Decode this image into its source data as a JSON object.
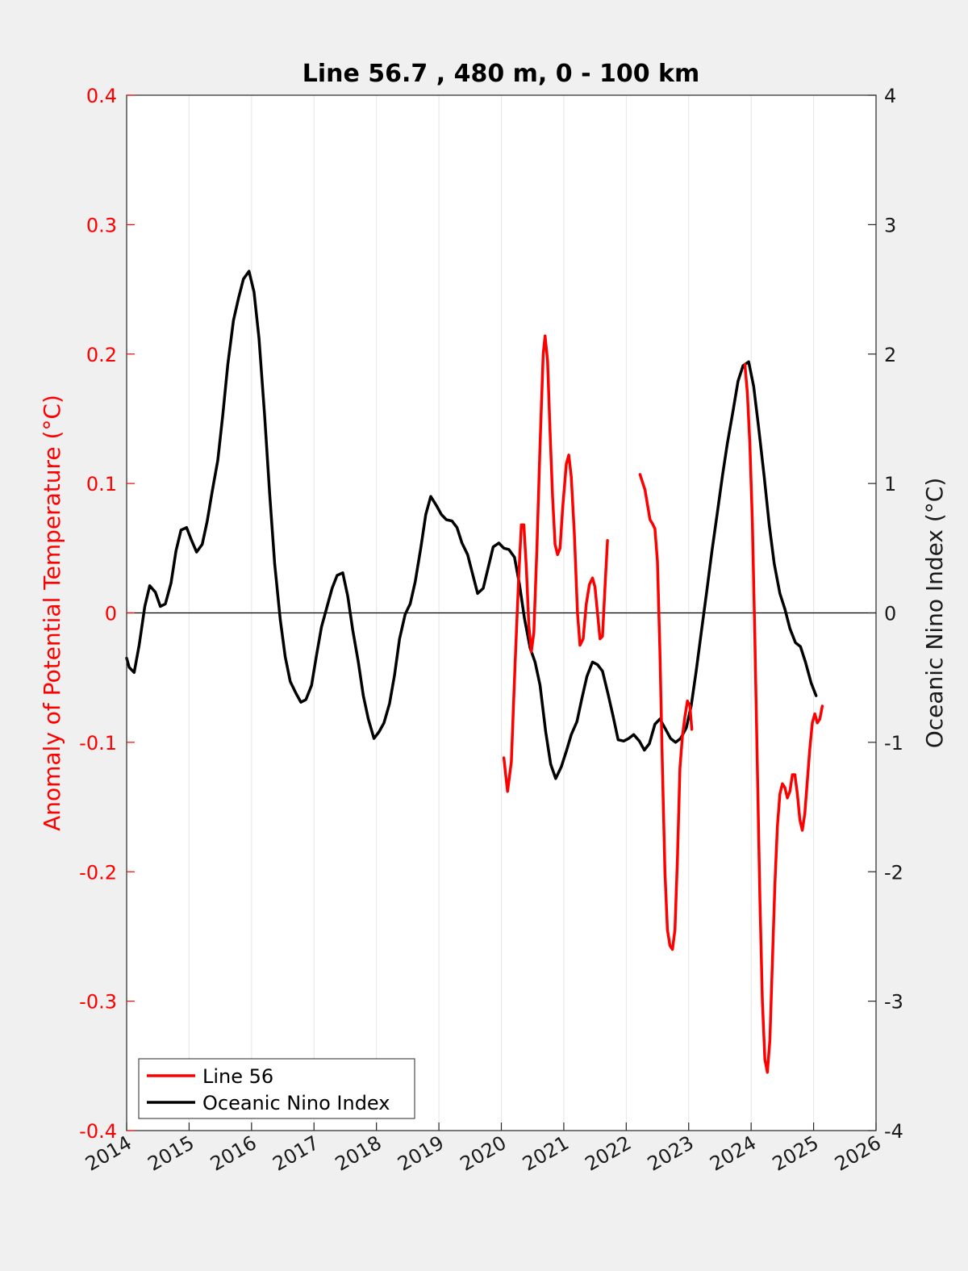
{
  "chart_data": {
    "type": "line",
    "title": "Line 56.7 , 480 m, 0 - 100 km",
    "ylabel_left": "Anomaly of Potential Temperature (°C)",
    "ylabel_right": "Oceanic Nino Index (°C)",
    "xlabel": "",
    "xlim": [
      2014,
      2026
    ],
    "ylim_left": [
      -0.4,
      0.4
    ],
    "ylim_right": [
      -4,
      4
    ],
    "x_ticks": [
      "2014",
      "2015",
      "2016",
      "2017",
      "2018",
      "2019",
      "2020",
      "2021",
      "2022",
      "2023",
      "2024",
      "2025",
      "2026"
    ],
    "y_ticks_left": [
      "0.4",
      "0.3",
      "0.2",
      "0.1",
      "0",
      "-0.1",
      "-0.2",
      "-0.3",
      "-0.4"
    ],
    "y_ticks_right": [
      "4",
      "3",
      "2",
      "1",
      "0",
      "-1",
      "-2",
      "-3",
      "-4"
    ],
    "grid": "vertical",
    "zero_line": true,
    "legend_position": "bottom-left",
    "series": [
      {
        "name": "Line 56",
        "axis": "left",
        "color": "#ff0000",
        "segments": [
          [
            [
              2020.04,
              -0.112
            ],
            [
              2020.1,
              -0.138
            ],
            [
              2020.16,
              -0.115
            ],
            [
              2020.22,
              -0.04
            ],
            [
              2020.28,
              0.03
            ],
            [
              2020.32,
              0.068
            ],
            [
              2020.36,
              0.068
            ],
            [
              2020.4,
              0.035
            ],
            [
              2020.44,
              -0.01
            ],
            [
              2020.48,
              -0.03
            ],
            [
              2020.52,
              -0.015
            ],
            [
              2020.57,
              0.05
            ],
            [
              2020.62,
              0.13
            ],
            [
              2020.67,
              0.2
            ],
            [
              2020.7,
              0.214
            ],
            [
              2020.74,
              0.195
            ],
            [
              2020.78,
              0.14
            ],
            [
              2020.82,
              0.09
            ],
            [
              2020.86,
              0.053
            ],
            [
              2020.9,
              0.045
            ],
            [
              2020.94,
              0.05
            ],
            [
              2020.98,
              0.08
            ],
            [
              2021.04,
              0.115
            ],
            [
              2021.08,
              0.122
            ],
            [
              2021.12,
              0.105
            ],
            [
              2021.17,
              0.06
            ],
            [
              2021.22,
              0.0
            ],
            [
              2021.26,
              -0.025
            ],
            [
              2021.31,
              -0.02
            ],
            [
              2021.36,
              0.007
            ],
            [
              2021.41,
              0.022
            ],
            [
              2021.46,
              0.027
            ],
            [
              2021.5,
              0.02
            ],
            [
              2021.54,
              0.0
            ],
            [
              2021.58,
              -0.02
            ],
            [
              2021.62,
              -0.018
            ],
            [
              2021.66,
              0.02
            ],
            [
              2021.7,
              0.056
            ]
          ],
          [
            [
              2022.22,
              0.107
            ],
            [
              2022.3,
              0.095
            ],
            [
              2022.38,
              0.072
            ],
            [
              2022.42,
              0.069
            ],
            [
              2022.46,
              0.065
            ],
            [
              2022.5,
              0.04
            ],
            [
              2022.54,
              -0.03
            ],
            [
              2022.58,
              -0.12
            ],
            [
              2022.62,
              -0.2
            ],
            [
              2022.66,
              -0.245
            ],
            [
              2022.7,
              -0.257
            ],
            [
              2022.74,
              -0.26
            ],
            [
              2022.78,
              -0.245
            ],
            [
              2022.82,
              -0.19
            ],
            [
              2022.86,
              -0.12
            ],
            [
              2022.9,
              -0.095
            ],
            [
              2022.94,
              -0.08
            ],
            [
              2022.98,
              -0.068
            ],
            [
              2023.02,
              -0.072
            ],
            [
              2023.05,
              -0.09
            ]
          ],
          [
            [
              2023.9,
              0.192
            ],
            [
              2023.94,
              0.17
            ],
            [
              2023.98,
              0.13
            ],
            [
              2024.02,
              0.07
            ],
            [
              2024.06,
              -0.02
            ],
            [
              2024.1,
              -0.12
            ],
            [
              2024.14,
              -0.22
            ],
            [
              2024.18,
              -0.3
            ],
            [
              2024.22,
              -0.345
            ],
            [
              2024.26,
              -0.355
            ],
            [
              2024.3,
              -0.33
            ],
            [
              2024.34,
              -0.27
            ],
            [
              2024.38,
              -0.21
            ],
            [
              2024.42,
              -0.165
            ],
            [
              2024.46,
              -0.14
            ],
            [
              2024.5,
              -0.132
            ],
            [
              2024.54,
              -0.135
            ],
            [
              2024.58,
              -0.143
            ],
            [
              2024.62,
              -0.138
            ],
            [
              2024.66,
              -0.125
            ],
            [
              2024.7,
              -0.125
            ],
            [
              2024.74,
              -0.14
            ],
            [
              2024.78,
              -0.16
            ],
            [
              2024.82,
              -0.168
            ],
            [
              2024.86,
              -0.155
            ],
            [
              2024.9,
              -0.13
            ],
            [
              2024.94,
              -0.105
            ],
            [
              2024.98,
              -0.085
            ],
            [
              2025.02,
              -0.078
            ],
            [
              2025.06,
              -0.085
            ],
            [
              2025.1,
              -0.082
            ],
            [
              2025.14,
              -0.072
            ]
          ]
        ]
      },
      {
        "name": "Oceanic Nino Index",
        "axis": "right",
        "color": "#000000",
        "segments": [
          [
            [
              2014.0,
              -0.35
            ],
            [
              2014.04,
              -0.42
            ],
            [
              2014.12,
              -0.46
            ],
            [
              2014.2,
              -0.25
            ],
            [
              2014.29,
              0.05
            ],
            [
              2014.37,
              0.21
            ],
            [
              2014.46,
              0.16
            ],
            [
              2014.54,
              0.05
            ],
            [
              2014.62,
              0.07
            ],
            [
              2014.71,
              0.23
            ],
            [
              2014.79,
              0.48
            ],
            [
              2014.87,
              0.64
            ],
            [
              2014.96,
              0.66
            ],
            [
              2015.04,
              0.56
            ],
            [
              2015.12,
              0.47
            ],
            [
              2015.21,
              0.53
            ],
            [
              2015.29,
              0.71
            ],
            [
              2015.37,
              0.94
            ],
            [
              2015.46,
              1.18
            ],
            [
              2015.54,
              1.53
            ],
            [
              2015.62,
              1.92
            ],
            [
              2015.71,
              2.26
            ],
            [
              2015.79,
              2.43
            ],
            [
              2015.87,
              2.58
            ],
            [
              2015.96,
              2.64
            ],
            [
              2016.04,
              2.48
            ],
            [
              2016.12,
              2.12
            ],
            [
              2016.21,
              1.52
            ],
            [
              2016.29,
              0.92
            ],
            [
              2016.37,
              0.38
            ],
            [
              2016.46,
              -0.05
            ],
            [
              2016.54,
              -0.34
            ],
            [
              2016.62,
              -0.53
            ],
            [
              2016.71,
              -0.62
            ],
            [
              2016.79,
              -0.69
            ],
            [
              2016.87,
              -0.67
            ],
            [
              2016.96,
              -0.56
            ],
            [
              2017.04,
              -0.33
            ],
            [
              2017.12,
              -0.11
            ],
            [
              2017.21,
              0.05
            ],
            [
              2017.29,
              0.19
            ],
            [
              2017.37,
              0.29
            ],
            [
              2017.46,
              0.31
            ],
            [
              2017.54,
              0.13
            ],
            [
              2017.62,
              -0.13
            ],
            [
              2017.71,
              -0.38
            ],
            [
              2017.79,
              -0.64
            ],
            [
              2017.87,
              -0.82
            ],
            [
              2017.96,
              -0.97
            ],
            [
              2018.04,
              -0.92
            ],
            [
              2018.12,
              -0.85
            ],
            [
              2018.21,
              -0.7
            ],
            [
              2018.29,
              -0.48
            ],
            [
              2018.37,
              -0.2
            ],
            [
              2018.46,
              -0.01
            ],
            [
              2018.54,
              0.07
            ],
            [
              2018.62,
              0.24
            ],
            [
              2018.71,
              0.5
            ],
            [
              2018.79,
              0.76
            ],
            [
              2018.87,
              0.9
            ],
            [
              2018.96,
              0.83
            ],
            [
              2019.04,
              0.76
            ],
            [
              2019.12,
              0.72
            ],
            [
              2019.21,
              0.71
            ],
            [
              2019.29,
              0.66
            ],
            [
              2019.37,
              0.54
            ],
            [
              2019.46,
              0.45
            ],
            [
              2019.54,
              0.3
            ],
            [
              2019.62,
              0.15
            ],
            [
              2019.71,
              0.19
            ],
            [
              2019.79,
              0.35
            ],
            [
              2019.87,
              0.51
            ],
            [
              2019.96,
              0.54
            ],
            [
              2020.04,
              0.5
            ],
            [
              2020.12,
              0.49
            ],
            [
              2020.21,
              0.43
            ],
            [
              2020.29,
              0.22
            ],
            [
              2020.37,
              -0.04
            ],
            [
              2020.46,
              -0.27
            ],
            [
              2020.54,
              -0.38
            ],
            [
              2020.62,
              -0.56
            ],
            [
              2020.71,
              -0.92
            ],
            [
              2020.79,
              -1.17
            ],
            [
              2020.87,
              -1.28
            ],
            [
              2020.96,
              -1.19
            ],
            [
              2021.04,
              -1.07
            ],
            [
              2021.12,
              -0.94
            ],
            [
              2021.21,
              -0.84
            ],
            [
              2021.29,
              -0.66
            ],
            [
              2021.37,
              -0.49
            ],
            [
              2021.46,
              -0.38
            ],
            [
              2021.54,
              -0.4
            ],
            [
              2021.62,
              -0.45
            ],
            [
              2021.71,
              -0.63
            ],
            [
              2021.79,
              -0.8
            ],
            [
              2021.87,
              -0.98
            ],
            [
              2021.96,
              -0.99
            ],
            [
              2022.04,
              -0.97
            ],
            [
              2022.12,
              -0.94
            ],
            [
              2022.21,
              -0.99
            ],
            [
              2022.29,
              -1.06
            ],
            [
              2022.37,
              -1.01
            ],
            [
              2022.46,
              -0.86
            ],
            [
              2022.54,
              -0.82
            ],
            [
              2022.62,
              -0.89
            ],
            [
              2022.71,
              -0.97
            ],
            [
              2022.79,
              -1.0
            ],
            [
              2022.87,
              -0.97
            ],
            [
              2022.96,
              -0.89
            ],
            [
              2023.04,
              -0.72
            ],
            [
              2023.12,
              -0.45
            ],
            [
              2023.21,
              -0.12
            ],
            [
              2023.29,
              0.17
            ],
            [
              2023.37,
              0.47
            ],
            [
              2023.46,
              0.78
            ],
            [
              2023.54,
              1.06
            ],
            [
              2023.62,
              1.31
            ],
            [
              2023.71,
              1.56
            ],
            [
              2023.79,
              1.79
            ],
            [
              2023.87,
              1.91
            ],
            [
              2023.96,
              1.94
            ],
            [
              2024.04,
              1.75
            ],
            [
              2024.12,
              1.43
            ],
            [
              2024.21,
              1.05
            ],
            [
              2024.29,
              0.68
            ],
            [
              2024.37,
              0.38
            ],
            [
              2024.46,
              0.15
            ],
            [
              2024.54,
              0.03
            ],
            [
              2024.62,
              -0.12
            ],
            [
              2024.71,
              -0.23
            ],
            [
              2024.79,
              -0.26
            ],
            [
              2024.87,
              -0.38
            ],
            [
              2024.96,
              -0.54
            ],
            [
              2025.04,
              -0.64
            ]
          ]
        ]
      }
    ]
  }
}
